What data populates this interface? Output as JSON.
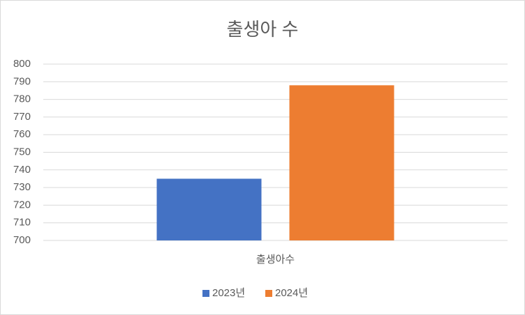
{
  "chart_data": {
    "type": "bar",
    "title": "출생아 수",
    "categories": [
      "출생아수"
    ],
    "series": [
      {
        "name": "2023년",
        "color": "#4472c4",
        "values": [
          735
        ]
      },
      {
        "name": "2024년",
        "color": "#ed7d31",
        "values": [
          788
        ]
      }
    ],
    "ylim": [
      700,
      800
    ],
    "yticks": [
      700,
      710,
      720,
      730,
      740,
      750,
      760,
      770,
      780,
      790,
      800
    ],
    "grid": true,
    "legend": "bottom"
  }
}
